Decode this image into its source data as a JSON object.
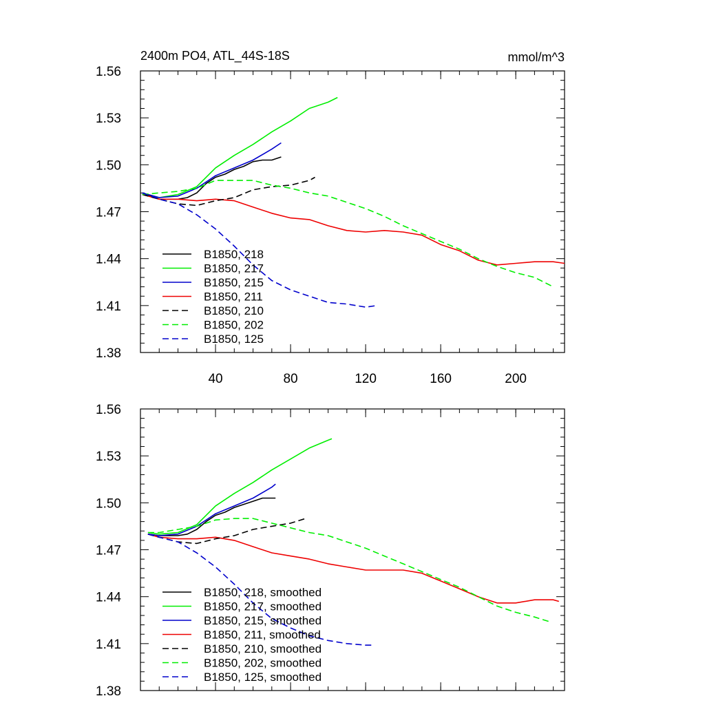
{
  "chart_data": [
    {
      "type": "line",
      "title": "2400m PO4, ATL_44S-18S",
      "units": "mmol/m^3",
      "xlim": [
        0,
        226
      ],
      "ylim": [
        1.38,
        1.56
      ],
      "xticks": [
        40,
        80,
        120,
        160,
        200
      ],
      "yticks": [
        1.38,
        1.41,
        1.44,
        1.47,
        1.5,
        1.53,
        1.56
      ],
      "ytick_labels": [
        "1.38",
        "1.41",
        "1.44",
        "1.47",
        "1.50",
        "1.53",
        "1.56"
      ],
      "legend_position": "lower-left",
      "series": [
        {
          "name": "B1850, 218",
          "color": "#000000",
          "dash": "solid",
          "x": [
            1,
            10,
            20,
            25,
            30,
            35,
            40,
            45,
            50,
            55,
            60,
            65,
            70,
            75
          ],
          "y": [
            1.482,
            1.478,
            1.478,
            1.479,
            1.482,
            1.488,
            1.492,
            1.494,
            1.497,
            1.499,
            1.502,
            1.503,
            1.503,
            1.505
          ]
        },
        {
          "name": "B1850, 217",
          "color": "#00ee00",
          "dash": "solid",
          "x": [
            1,
            10,
            20,
            30,
            40,
            50,
            60,
            70,
            80,
            90,
            100,
            105
          ],
          "y": [
            1.482,
            1.479,
            1.481,
            1.486,
            1.498,
            1.506,
            1.513,
            1.521,
            1.528,
            1.536,
            1.54,
            1.543
          ]
        },
        {
          "name": "B1850, 215",
          "color": "#0000cc",
          "dash": "solid",
          "x": [
            1,
            10,
            20,
            30,
            40,
            50,
            60,
            70,
            75
          ],
          "y": [
            1.482,
            1.479,
            1.48,
            1.485,
            1.493,
            1.498,
            1.503,
            1.51,
            1.514
          ]
        },
        {
          "name": "B1850, 211",
          "color": "#ee0000",
          "dash": "solid",
          "x": [
            1,
            10,
            20,
            30,
            40,
            50,
            60,
            70,
            80,
            90,
            100,
            110,
            120,
            130,
            140,
            150,
            160,
            170,
            180,
            190,
            200,
            210,
            220,
            226
          ],
          "y": [
            1.481,
            1.478,
            1.478,
            1.477,
            1.478,
            1.477,
            1.473,
            1.469,
            1.466,
            1.465,
            1.461,
            1.458,
            1.457,
            1.458,
            1.457,
            1.455,
            1.449,
            1.445,
            1.439,
            1.436,
            1.437,
            1.438,
            1.438,
            1.437
          ]
        },
        {
          "name": "B1850, 210",
          "color": "#000000",
          "dash": "dashed",
          "x": [
            1,
            10,
            20,
            30,
            40,
            50,
            60,
            70,
            80,
            90,
            93
          ],
          "y": [
            1.481,
            1.478,
            1.475,
            1.474,
            1.477,
            1.479,
            1.484,
            1.486,
            1.487,
            1.49,
            1.492
          ]
        },
        {
          "name": "B1850, 202",
          "color": "#00ee00",
          "dash": "dashed",
          "x": [
            1,
            10,
            20,
            30,
            40,
            50,
            60,
            70,
            80,
            90,
            100,
            110,
            120,
            130,
            140,
            150,
            160,
            170,
            180,
            190,
            200,
            210,
            220
          ],
          "y": [
            1.481,
            1.482,
            1.483,
            1.485,
            1.49,
            1.49,
            1.49,
            1.487,
            1.485,
            1.482,
            1.48,
            1.476,
            1.472,
            1.467,
            1.461,
            1.456,
            1.451,
            1.446,
            1.44,
            1.435,
            1.431,
            1.428,
            1.422
          ]
        },
        {
          "name": "B1850, 125",
          "color": "#0000cc",
          "dash": "dashed",
          "x": [
            1,
            10,
            20,
            30,
            40,
            50,
            60,
            70,
            80,
            90,
            100,
            110,
            120,
            126
          ],
          "y": [
            1.482,
            1.478,
            1.475,
            1.468,
            1.459,
            1.448,
            1.436,
            1.426,
            1.42,
            1.416,
            1.412,
            1.411,
            1.409,
            1.41
          ]
        }
      ]
    },
    {
      "type": "line",
      "xlim": [
        0,
        226
      ],
      "ylim": [
        1.38,
        1.56
      ],
      "xticks": [
        40,
        80,
        120,
        160,
        200
      ],
      "yticks": [
        1.38,
        1.41,
        1.44,
        1.47,
        1.5,
        1.53,
        1.56
      ],
      "ytick_labels": [
        "1.38",
        "1.41",
        "1.44",
        "1.47",
        "1.50",
        "1.53",
        "1.56"
      ],
      "legend_position": "lower-left",
      "series": [
        {
          "name": "B1850, 218, smoothed",
          "color": "#000000",
          "dash": "solid",
          "x": [
            4,
            10,
            20,
            25,
            30,
            35,
            40,
            45,
            50,
            55,
            60,
            65,
            70,
            72
          ],
          "y": [
            1.48,
            1.479,
            1.479,
            1.48,
            1.483,
            1.488,
            1.492,
            1.494,
            1.497,
            1.499,
            1.501,
            1.503,
            1.503,
            1.503
          ]
        },
        {
          "name": "B1850, 217, smoothed",
          "color": "#00ee00",
          "dash": "solid",
          "x": [
            4,
            10,
            20,
            30,
            40,
            50,
            60,
            70,
            80,
            90,
            100,
            102
          ],
          "y": [
            1.481,
            1.48,
            1.481,
            1.486,
            1.498,
            1.506,
            1.513,
            1.521,
            1.528,
            1.535,
            1.54,
            1.541
          ]
        },
        {
          "name": "B1850, 215, smoothed",
          "color": "#0000cc",
          "dash": "solid",
          "x": [
            4,
            10,
            20,
            30,
            40,
            50,
            60,
            70,
            72
          ],
          "y": [
            1.48,
            1.479,
            1.48,
            1.485,
            1.493,
            1.498,
            1.503,
            1.51,
            1.512
          ]
        },
        {
          "name": "B1850, 211, smoothed",
          "color": "#ee0000",
          "dash": "solid",
          "x": [
            4,
            10,
            20,
            30,
            40,
            50,
            60,
            70,
            80,
            90,
            100,
            110,
            120,
            130,
            140,
            150,
            160,
            170,
            180,
            190,
            200,
            210,
            220,
            223
          ],
          "y": [
            1.48,
            1.478,
            1.477,
            1.477,
            1.478,
            1.476,
            1.472,
            1.468,
            1.466,
            1.464,
            1.461,
            1.459,
            1.457,
            1.457,
            1.457,
            1.455,
            1.45,
            1.445,
            1.44,
            1.436,
            1.436,
            1.438,
            1.438,
            1.437
          ]
        },
        {
          "name": "B1850, 210, smoothed",
          "color": "#000000",
          "dash": "dashed",
          "x": [
            4,
            10,
            20,
            30,
            40,
            50,
            60,
            70,
            80,
            88
          ],
          "y": [
            1.48,
            1.478,
            1.475,
            1.474,
            1.477,
            1.479,
            1.483,
            1.485,
            1.487,
            1.49
          ]
        },
        {
          "name": "B1850, 202, smoothed",
          "color": "#00ee00",
          "dash": "dashed",
          "x": [
            4,
            10,
            20,
            30,
            40,
            50,
            60,
            70,
            80,
            90,
            100,
            110,
            120,
            130,
            140,
            150,
            160,
            170,
            180,
            190,
            200,
            210,
            218
          ],
          "y": [
            1.481,
            1.481,
            1.483,
            1.485,
            1.489,
            1.49,
            1.49,
            1.487,
            1.484,
            1.481,
            1.479,
            1.475,
            1.471,
            1.466,
            1.461,
            1.456,
            1.451,
            1.446,
            1.44,
            1.434,
            1.43,
            1.427,
            1.424
          ]
        },
        {
          "name": "B1850, 125, smoothed",
          "color": "#0000cc",
          "dash": "dashed",
          "x": [
            4,
            10,
            20,
            30,
            40,
            50,
            60,
            70,
            80,
            90,
            100,
            110,
            120,
            123
          ],
          "y": [
            1.48,
            1.478,
            1.475,
            1.468,
            1.459,
            1.448,
            1.436,
            1.426,
            1.42,
            1.415,
            1.412,
            1.41,
            1.409,
            1.409
          ]
        }
      ]
    }
  ]
}
